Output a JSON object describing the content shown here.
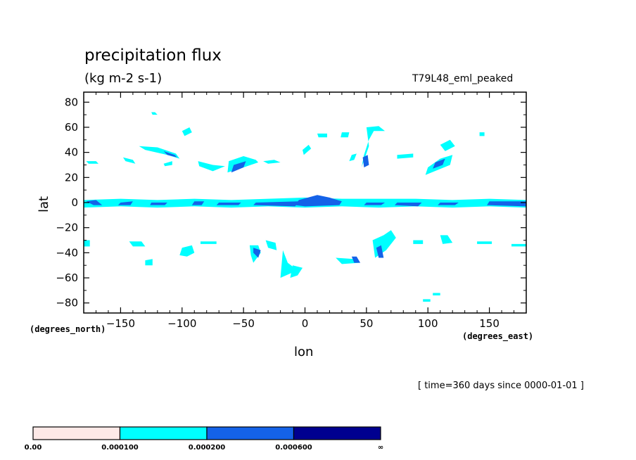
{
  "chart_data": {
    "type": "heatmap",
    "title": "precipitation flux",
    "units": "(kg m-2 s-1)",
    "dataset": "T79L48_eml_peaked",
    "xlabel": "lon",
    "ylabel": "lat",
    "x_units": "(degrees_east)",
    "y_units": "(degrees_north)",
    "time_note": "[ time=360 days since 0000-01-01 ]",
    "xlim": [
      -180,
      180
    ],
    "ylim": [
      -88,
      88
    ],
    "x_ticks": [
      -150,
      -100,
      -50,
      0,
      50,
      100,
      150
    ],
    "x_tick_labels": [
      "-150",
      "-100",
      "-50",
      "0",
      "50",
      "100",
      "150"
    ],
    "y_ticks": [
      80,
      60,
      40,
      20,
      0,
      -20,
      -40,
      -60,
      -80
    ],
    "y_tick_labels": [
      "80",
      "60",
      "40",
      "20",
      "0",
      "-20",
      "-40",
      "-60",
      "-80"
    ],
    "grid": false,
    "colorbar": {
      "levels": [
        "0.00",
        "0.000100",
        "0.000200",
        "0.000600",
        "∞"
      ],
      "colors": [
        "#fde9e7",
        "#00ffff",
        "#1462e8",
        "#00008f"
      ]
    },
    "regions": [
      {
        "level": 1,
        "lon": [
          -180,
          -150,
          -120,
          -90,
          -60,
          -30,
          0,
          30,
          60,
          90,
          120,
          150,
          180,
          180,
          150,
          120,
          90,
          60,
          30,
          0,
          -30,
          -60,
          -90,
          -120,
          -150,
          -180
        ],
        "lat": [
          2,
          3,
          2,
          3,
          2,
          3,
          4,
          3,
          3,
          3,
          2,
          3,
          2,
          -4,
          -3,
          -4,
          -3,
          -4,
          -3,
          -4,
          -3,
          -4,
          -3,
          -4,
          -3,
          -4
        ]
      },
      {
        "level": 2,
        "lon": [
          -178,
          -170,
          -165,
          -172
        ],
        "lat": [
          1,
          2,
          -2,
          -2
        ]
      },
      {
        "level": 2,
        "lon": [
          -150,
          -140,
          -142,
          -152
        ],
        "lat": [
          0,
          1,
          -2,
          -2
        ]
      },
      {
        "level": 2,
        "lon": [
          -125,
          -112,
          -114,
          -126
        ],
        "lat": [
          0,
          0,
          -2,
          -2
        ]
      },
      {
        "level": 2,
        "lon": [
          -90,
          -82,
          -84,
          -92
        ],
        "lat": [
          1,
          1,
          -2,
          -2
        ]
      },
      {
        "level": 2,
        "lon": [
          -70,
          -52,
          -54,
          -72
        ],
        "lat": [
          0,
          0,
          -2,
          -2
        ]
      },
      {
        "level": 2,
        "lon": [
          -40,
          -5,
          -8,
          -42
        ],
        "lat": [
          0,
          1,
          -3,
          -2
        ]
      },
      {
        "level": 2,
        "lon": [
          -5,
          10,
          20,
          30,
          28,
          0,
          -8
        ],
        "lat": [
          2,
          6,
          4,
          1,
          -2,
          -3,
          -2
        ]
      },
      {
        "level": 2,
        "lon": [
          50,
          65,
          62,
          48
        ],
        "lat": [
          0,
          0,
          -2,
          -2
        ]
      },
      {
        "level": 2,
        "lon": [
          75,
          95,
          92,
          73
        ],
        "lat": [
          0,
          0,
          -3,
          -2
        ]
      },
      {
        "level": 2,
        "lon": [
          110,
          125,
          122,
          108
        ],
        "lat": [
          0,
          0,
          -2,
          -2
        ]
      },
      {
        "level": 2,
        "lon": [
          150,
          180,
          180,
          148
        ],
        "lat": [
          1,
          1,
          -3,
          -2
        ]
      },
      {
        "level": 1,
        "lon": [
          -135,
          -120,
          -105,
          -102,
          -112,
          -130
        ],
        "lat": [
          45,
          44,
          39,
          35,
          38,
          42
        ]
      },
      {
        "level": 2,
        "lon": [
          -115,
          -106,
          -104,
          -112
        ],
        "lat": [
          41,
          38,
          36,
          38
        ]
      },
      {
        "level": 1,
        "lon": [
          -100,
          -94,
          -92,
          -98
        ],
        "lat": [
          57,
          60,
          56,
          53
        ]
      },
      {
        "level": 1,
        "lon": [
          -125,
          -122,
          -120,
          -124
        ],
        "lat": [
          72,
          72,
          70,
          70
        ]
      },
      {
        "level": 1,
        "lon": [
          -148,
          -140,
          -138,
          -146
        ],
        "lat": [
          36,
          34,
          31,
          33
        ]
      },
      {
        "level": 1,
        "lon": [
          -178,
          -170,
          -168,
          -176
        ],
        "lat": [
          33,
          33,
          31,
          31
        ]
      },
      {
        "level": 1,
        "lon": [
          -115,
          -108,
          -108,
          -114
        ],
        "lat": [
          31,
          33,
          30,
          29
        ]
      },
      {
        "level": 1,
        "lon": [
          -87,
          -75,
          -65,
          -75,
          -86
        ],
        "lat": [
          33,
          30,
          29,
          25,
          29
        ]
      },
      {
        "level": 1,
        "lon": [
          -62,
          -50,
          -40,
          -38,
          -50,
          -63
        ],
        "lat": [
          33,
          37,
          34,
          32,
          28,
          24
        ]
      },
      {
        "level": 2,
        "lon": [
          -58,
          -48,
          -50,
          -60
        ],
        "lat": [
          30,
          33,
          28,
          24
        ]
      },
      {
        "level": 1,
        "lon": [
          -34,
          -25,
          -20,
          -30
        ],
        "lat": [
          33,
          34,
          32,
          31
        ]
      },
      {
        "level": 1,
        "lon": [
          -2,
          3,
          5,
          -1
        ],
        "lat": [
          42,
          46,
          43,
          38
        ]
      },
      {
        "level": 1,
        "lon": [
          10,
          18,
          18,
          11
        ],
        "lat": [
          55,
          55,
          52,
          52
        ]
      },
      {
        "level": 1,
        "lon": [
          30,
          36,
          35,
          29
        ],
        "lat": [
          56,
          56,
          52,
          52
        ]
      },
      {
        "level": 1,
        "lon": [
          50,
          60,
          65,
          56,
          52,
          48,
          46,
          52
        ],
        "lat": [
          60,
          61,
          57,
          57,
          50,
          38,
          28,
          45
        ]
      },
      {
        "level": 2,
        "lon": [
          47,
          51,
          52,
          48
        ],
        "lat": [
          36,
          38,
          30,
          28
        ]
      },
      {
        "level": 1,
        "lon": [
          38,
          42,
          40,
          36
        ],
        "lat": [
          38,
          39,
          34,
          33
        ]
      },
      {
        "level": 1,
        "lon": [
          75,
          88,
          88,
          75
        ],
        "lat": [
          38,
          39,
          36,
          35
        ]
      },
      {
        "level": 1,
        "lon": [
          100,
          110,
          120,
          118,
          108,
          98
        ],
        "lat": [
          28,
          35,
          38,
          30,
          26,
          22
        ]
      },
      {
        "level": 2,
        "lon": [
          106,
          114,
          112,
          104
        ],
        "lat": [
          32,
          35,
          30,
          27
        ]
      },
      {
        "level": 1,
        "lon": [
          110,
          118,
          122,
          114
        ],
        "lat": [
          46,
          50,
          45,
          41
        ]
      },
      {
        "level": 1,
        "lon": [
          142,
          146,
          146,
          142
        ],
        "lat": [
          56,
          56,
          53,
          53
        ]
      },
      {
        "level": 1,
        "lon": [
          -143,
          -133,
          -130,
          -140
        ],
        "lat": [
          -31,
          -31,
          -35,
          -35
        ]
      },
      {
        "level": 1,
        "lon": [
          -180,
          -175,
          -175,
          -180
        ],
        "lat": [
          -30,
          -30,
          -35,
          -35
        ]
      },
      {
        "level": 1,
        "lon": [
          -130,
          -124,
          -124,
          -130
        ],
        "lat": [
          -46,
          -45,
          -50,
          -50
        ]
      },
      {
        "level": 1,
        "lon": [
          -100,
          -92,
          -90,
          -96,
          -102
        ],
        "lat": [
          -36,
          -34,
          -40,
          -43,
          -42
        ]
      },
      {
        "level": 1,
        "lon": [
          -85,
          -72,
          -72,
          -85
        ],
        "lat": [
          -31,
          -31,
          -33,
          -33
        ]
      },
      {
        "level": 1,
        "lon": [
          -45,
          -38,
          -36,
          -42,
          -44
        ],
        "lat": [
          -34,
          -34,
          -40,
          -48,
          -42
        ]
      },
      {
        "level": 2,
        "lon": [
          -42,
          -36,
          -38,
          -42
        ],
        "lat": [
          -36,
          -38,
          -44,
          -40
        ]
      },
      {
        "level": 1,
        "lon": [
          -32,
          -24,
          -23,
          -30
        ],
        "lat": [
          -30,
          -32,
          -38,
          -36
        ]
      },
      {
        "level": 1,
        "lon": [
          -18,
          -14,
          -6,
          -20
        ],
        "lat": [
          -38,
          -48,
          -54,
          -60
        ]
      },
      {
        "level": 1,
        "lon": [
          -10,
          -2,
          -6,
          -12
        ],
        "lat": [
          -50,
          -52,
          -58,
          -60
        ]
      },
      {
        "level": 1,
        "lon": [
          25,
          40,
          44,
          30
        ],
        "lat": [
          -44,
          -45,
          -48,
          -49
        ]
      },
      {
        "level": 2,
        "lon": [
          38,
          42,
          45,
          40
        ],
        "lat": [
          -43,
          -43,
          -48,
          -48
        ]
      },
      {
        "level": 1,
        "lon": [
          55,
          64,
          70,
          74,
          66,
          57
        ],
        "lat": [
          -30,
          -26,
          -22,
          -28,
          -38,
          -44
        ]
      },
      {
        "level": 2,
        "lon": [
          58,
          62,
          64,
          60
        ],
        "lat": [
          -36,
          -34,
          -44,
          -44
        ]
      },
      {
        "level": 1,
        "lon": [
          88,
          96,
          96,
          88
        ],
        "lat": [
          -30,
          -30,
          -33,
          -33
        ]
      },
      {
        "level": 1,
        "lon": [
          110,
          116,
          120,
          112
        ],
        "lat": [
          -26,
          -26,
          -32,
          -33
        ]
      },
      {
        "level": 1,
        "lon": [
          140,
          152,
          152,
          140
        ],
        "lat": [
          -31,
          -31,
          -33,
          -33
        ]
      },
      {
        "level": 1,
        "lon": [
          168,
          180,
          180,
          168
        ],
        "lat": [
          -33,
          -33,
          -35,
          -35
        ]
      },
      {
        "level": 1,
        "lon": [
          96,
          102,
          102,
          96
        ],
        "lat": [
          -77,
          -77,
          -79,
          -79
        ]
      },
      {
        "level": 1,
        "lon": [
          104,
          110,
          110,
          104
        ],
        "lat": [
          -72,
          -72,
          -74,
          -74
        ]
      }
    ]
  }
}
